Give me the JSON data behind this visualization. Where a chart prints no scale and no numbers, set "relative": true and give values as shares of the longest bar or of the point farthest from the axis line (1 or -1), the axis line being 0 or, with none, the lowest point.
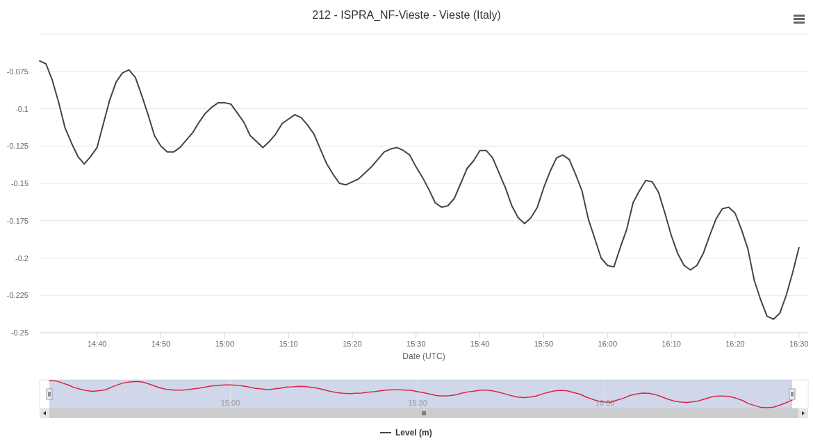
{
  "chart_data": [
    {
      "type": "line",
      "title": "212 - ISPRA_NF-Vieste - Vieste (Italy)",
      "xlabel": "Date (UTC)",
      "x": [
        14.5167,
        14.5333,
        14.55,
        14.5667,
        14.5833,
        14.6,
        14.6167,
        14.6333,
        14.65,
        14.6667,
        14.6833,
        14.7,
        14.7167,
        14.7333,
        14.75,
        14.7667,
        14.7833,
        14.8,
        14.8167,
        14.8333,
        14.85,
        14.8667,
        14.8833,
        14.9,
        14.9167,
        14.9333,
        14.95,
        14.9667,
        14.9833,
        15,
        15.0167,
        15.0333,
        15.05,
        15.0667,
        15.0833,
        15.1,
        15.1167,
        15.1333,
        15.15,
        15.1667,
        15.1833,
        15.2,
        15.2167,
        15.2333,
        15.25,
        15.2667,
        15.2833,
        15.3,
        15.3167,
        15.3333,
        15.35,
        15.3667,
        15.3833,
        15.4,
        15.4167,
        15.4333,
        15.45,
        15.4667,
        15.4833,
        15.5,
        15.5167,
        15.5333,
        15.55,
        15.5667,
        15.5833,
        15.6,
        15.6167,
        15.6333,
        15.65,
        15.6667,
        15.6833,
        15.7,
        15.7167,
        15.7333,
        15.75,
        15.7667,
        15.7833,
        15.8,
        15.8167,
        15.8333,
        15.85,
        15.8667,
        15.8833,
        15.9,
        15.9167,
        15.9333,
        15.95,
        15.9667,
        15.9833,
        16,
        16.0167,
        16.0333,
        16.05,
        16.0667,
        16.0833,
        16.1,
        16.1167,
        16.1333,
        16.15,
        16.1667,
        16.1833,
        16.2,
        16.2167,
        16.2333,
        16.25,
        16.2667,
        16.2833,
        16.3,
        16.3167,
        16.3333,
        16.35,
        16.3667,
        16.3833,
        16.4,
        16.4167,
        16.4333,
        16.45,
        16.4667,
        16.4833,
        16.5
      ],
      "series": [
        {
          "name": "Level (m)",
          "color": "#434348",
          "values": [
            -0.068,
            -0.07,
            -0.081,
            -0.096,
            -0.113,
            -0.123,
            -0.132,
            -0.137,
            -0.132,
            -0.126,
            -0.11,
            -0.094,
            -0.082,
            -0.076,
            -0.074,
            -0.079,
            -0.091,
            -0.104,
            -0.118,
            -0.125,
            -0.129,
            -0.129,
            -0.126,
            -0.121,
            -0.116,
            -0.109,
            -0.103,
            -0.099,
            -0.096,
            -0.096,
            -0.097,
            -0.103,
            -0.109,
            -0.118,
            -0.122,
            -0.126,
            -0.122,
            -0.117,
            -0.11,
            -0.107,
            -0.104,
            -0.106,
            -0.111,
            -0.117,
            -0.127,
            -0.137,
            -0.144,
            -0.15,
            -0.151,
            -0.149,
            -0.147,
            -0.143,
            -0.139,
            -0.134,
            -0.129,
            -0.127,
            -0.126,
            -0.128,
            -0.131,
            -0.139,
            -0.146,
            -0.154,
            -0.163,
            -0.166,
            -0.165,
            -0.16,
            -0.15,
            -0.14,
            -0.135,
            -0.128,
            -0.128,
            -0.133,
            -0.143,
            -0.153,
            -0.165,
            -0.173,
            -0.177,
            -0.173,
            -0.166,
            -0.153,
            -0.142,
            -0.133,
            -0.131,
            -0.134,
            -0.144,
            -0.155,
            -0.174,
            -0.187,
            -0.2,
            -0.205,
            -0.206,
            -0.193,
            -0.181,
            -0.163,
            -0.155,
            -0.148,
            -0.149,
            -0.156,
            -0.17,
            -0.185,
            -0.197,
            -0.205,
            -0.208,
            -0.205,
            -0.197,
            -0.185,
            -0.174,
            -0.167,
            -0.166,
            -0.17,
            -0.181,
            -0.194,
            -0.215,
            -0.228,
            -0.239,
            -0.241,
            -0.237,
            -0.225,
            -0.21,
            -0.193
          ]
        }
      ],
      "xlim": [
        14.5167,
        16.524
      ],
      "xticks": [
        {
          "value": 14.6667,
          "label": "14:40"
        },
        {
          "value": 14.8333,
          "label": "14:50"
        },
        {
          "value": 15,
          "label": "15:00"
        },
        {
          "value": 15.1667,
          "label": "15:10"
        },
        {
          "value": 15.3333,
          "label": "15:20"
        },
        {
          "value": 15.5,
          "label": "15:30"
        },
        {
          "value": 15.6667,
          "label": "15:40"
        },
        {
          "value": 15.8333,
          "label": "15:50"
        },
        {
          "value": 16,
          "label": "16:00"
        },
        {
          "value": 16.1667,
          "label": "16:10"
        },
        {
          "value": 16.3333,
          "label": "16:20"
        },
        {
          "value": 16.5,
          "label": "16:30"
        }
      ],
      "ylim": [
        -0.25,
        -0.05
      ],
      "yticks": [
        -0.25,
        -0.225,
        -0.2,
        -0.175,
        -0.15,
        -0.125,
        -0.1,
        -0.075,
        {
          "value": -0.05,
          "label": null
        }
      ],
      "grid": "y",
      "legend": "bottom"
    },
    {
      "type": "line",
      "relative": true,
      "tick_labels": "x",
      "grid": "x",
      "x": [
        14.5167,
        14.5333,
        14.55,
        14.5667,
        14.5833,
        14.6,
        14.6167,
        14.6333,
        14.65,
        14.6667,
        14.6833,
        14.7,
        14.7167,
        14.7333,
        14.75,
        14.7667,
        14.7833,
        14.8,
        14.8167,
        14.8333,
        14.85,
        14.8667,
        14.8833,
        14.9,
        14.9167,
        14.9333,
        14.95,
        14.9667,
        14.9833,
        15,
        15.0167,
        15.0333,
        15.05,
        15.0667,
        15.0833,
        15.1,
        15.1167,
        15.1333,
        15.15,
        15.1667,
        15.1833,
        15.2,
        15.2167,
        15.2333,
        15.25,
        15.2667,
        15.2833,
        15.3,
        15.3167,
        15.3333,
        15.35,
        15.3667,
        15.3833,
        15.4,
        15.4167,
        15.4333,
        15.45,
        15.4667,
        15.4833,
        15.5,
        15.5167,
        15.5333,
        15.55,
        15.5667,
        15.5833,
        15.6,
        15.6167,
        15.6333,
        15.65,
        15.6667,
        15.6833,
        15.7,
        15.7167,
        15.7333,
        15.75,
        15.7667,
        15.7833,
        15.8,
        15.8167,
        15.8333,
        15.85,
        15.8667,
        15.8833,
        15.9,
        15.9167,
        15.9333,
        15.95,
        15.9667,
        15.9833,
        16,
        16.0167,
        16.0333,
        16.05,
        16.0667,
        16.0833,
        16.1,
        16.1167,
        16.1333,
        16.15,
        16.1667,
        16.1833,
        16.2,
        16.2167,
        16.2333,
        16.25,
        16.2667,
        16.2833,
        16.3,
        16.3167,
        16.3333,
        16.35,
        16.3667,
        16.3833,
        16.4,
        16.4167,
        16.4333,
        16.45,
        16.4667,
        16.4833,
        16.5
      ],
      "series": [
        {
          "color": "#d7263d",
          "values": [
            1,
            0.99,
            0.92,
            0.84,
            0.74,
            0.68,
            0.63,
            0.6,
            0.63,
            0.66,
            0.76,
            0.85,
            0.92,
            0.95,
            0.97,
            0.94,
            0.87,
            0.79,
            0.71,
            0.67,
            0.65,
            0.65,
            0.66,
            0.69,
            0.72,
            0.76,
            0.8,
            0.82,
            0.84,
            0.84,
            0.83,
            0.8,
            0.76,
            0.71,
            0.69,
            0.66,
            0.69,
            0.72,
            0.76,
            0.77,
            0.79,
            0.78,
            0.75,
            0.72,
            0.66,
            0.6,
            0.56,
            0.53,
            0.52,
            0.53,
            0.54,
            0.57,
            0.59,
            0.62,
            0.65,
            0.66,
            0.66,
            0.65,
            0.64,
            0.59,
            0.55,
            0.5,
            0.45,
            0.43,
            0.44,
            0.47,
            0.53,
            0.58,
            0.61,
            0.65,
            0.65,
            0.62,
            0.57,
            0.51,
            0.44,
            0.39,
            0.37,
            0.39,
            0.43,
            0.51,
            0.57,
            0.62,
            0.64,
            0.62,
            0.56,
            0.5,
            0.39,
            0.31,
            0.24,
            0.21,
            0.2,
            0.28,
            0.35,
            0.45,
            0.5,
            0.54,
            0.53,
            0.49,
            0.41,
            0.32,
            0.25,
            0.21,
            0.19,
            0.21,
            0.25,
            0.32,
            0.39,
            0.43,
            0.43,
            0.41,
            0.35,
            0.27,
            0.15,
            0.08,
            0.01,
            0,
            0.02,
            0.09,
            0.18,
            0.28
          ]
        }
      ],
      "xlim": [
        14.5167,
        16.5
      ],
      "xticks": [
        {
          "value": 15,
          "label": "15:00"
        },
        {
          "value": 15.5,
          "label": "15:30"
        },
        {
          "value": 16,
          "label": "16:00"
        }
      ]
    }
  ]
}
